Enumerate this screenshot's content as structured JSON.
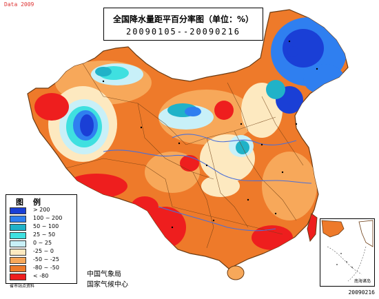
{
  "corner_tag": "Data 2009",
  "title": {
    "main": "全国降水量距平百分率图（单位：%）",
    "date_range": "20090105--20090216"
  },
  "legend": {
    "title": "图例",
    "items": [
      {
        "label": "> 200",
        "color": "#1a3fd6"
      },
      {
        "label": "100 ~ 200",
        "color": "#2f7ff0"
      },
      {
        "label": "50 ~ 100",
        "color": "#20b2c8"
      },
      {
        "label": "25 ~ 50",
        "color": "#3fe0e0"
      },
      {
        "label": "0 ~ 25",
        "color": "#c8f0f8"
      },
      {
        "label": "-25 ~ 0",
        "color": "#fde9c0"
      },
      {
        "label": "-50 ~ -25",
        "color": "#f7a85a"
      },
      {
        "label": "-80 ~ -50",
        "color": "#ee7a2a"
      },
      {
        "label": "< -80",
        "color": "#ee1e1e"
      }
    ]
  },
  "credits": {
    "line1": "中国气象局",
    "line2": "国家气候中心",
    "small": "省市站点资料"
  },
  "inset": {
    "label": "南海诸岛"
  },
  "date_stamp": "20090216",
  "colors": {
    "background": "#ffffff",
    "land_base": "#ee7a2a",
    "river": "#4a6fd8",
    "border": "#7a4a1a"
  }
}
